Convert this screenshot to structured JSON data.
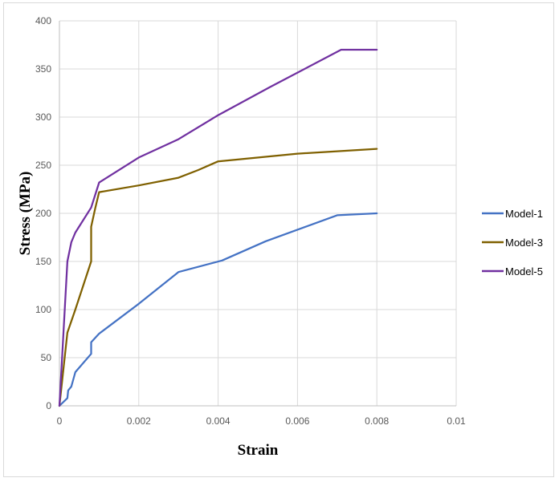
{
  "chart_data": {
    "type": "line",
    "xlabel": "Strain",
    "ylabel": "Stress (MPa)",
    "xlim": [
      0,
      0.01
    ],
    "ylim": [
      0,
      400
    ],
    "xticks": [
      0,
      0.002,
      0.004,
      0.006,
      0.008,
      0.01
    ],
    "xtick_labels": [
      "0",
      "0.002",
      "0.004",
      "0.006",
      "0.008",
      "0.01"
    ],
    "yticks": [
      0,
      50,
      100,
      150,
      200,
      250,
      300,
      350,
      400
    ],
    "ytick_labels": [
      "0",
      "50",
      "100",
      "150",
      "200",
      "250",
      "300",
      "350",
      "400"
    ],
    "grid": true,
    "legend_position": "right",
    "series": [
      {
        "name": "Model-1",
        "color": "#4472c4",
        "points": [
          [
            0,
            0
          ],
          [
            0.0002,
            8
          ],
          [
            0.00022,
            16
          ],
          [
            0.0003,
            20
          ],
          [
            0.0004,
            35
          ],
          [
            0.0008,
            54
          ],
          [
            0.0008,
            66
          ],
          [
            0.001,
            75
          ],
          [
            0.002,
            106
          ],
          [
            0.003,
            139
          ],
          [
            0.0041,
            151
          ],
          [
            0.0052,
            171
          ],
          [
            0.007,
            198
          ],
          [
            0.008,
            200
          ]
        ]
      },
      {
        "name": "Model-3",
        "color": "#7f6000",
        "points": [
          [
            0,
            0
          ],
          [
            0.0002,
            76
          ],
          [
            0.0004,
            100
          ],
          [
            0.0008,
            150
          ],
          [
            0.0008,
            186
          ],
          [
            0.0009,
            205
          ],
          [
            0.001,
            222
          ],
          [
            0.002,
            229
          ],
          [
            0.003,
            237
          ],
          [
            0.0035,
            245
          ],
          [
            0.004,
            254
          ],
          [
            0.006,
            262
          ],
          [
            0.008,
            267
          ]
        ]
      },
      {
        "name": "Model-5",
        "color": "#7030a0",
        "points": [
          [
            0,
            0
          ],
          [
            0.0002,
            150
          ],
          [
            0.0003,
            170
          ],
          [
            0.0004,
            180
          ],
          [
            0.0008,
            206
          ],
          [
            0.001,
            232
          ],
          [
            0.002,
            258
          ],
          [
            0.003,
            277
          ],
          [
            0.004,
            302
          ],
          [
            0.0053,
            331
          ],
          [
            0.0071,
            370
          ],
          [
            0.008,
            370
          ]
        ]
      }
    ]
  }
}
